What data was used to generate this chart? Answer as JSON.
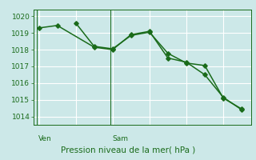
{
  "bg_color": "#cce8e8",
  "grid_color": "#ffffff",
  "line_color": "#1a6b1a",
  "spine_color": "#1a6b1a",
  "ylim": [
    1013.5,
    1020.4
  ],
  "yticks": [
    1014,
    1015,
    1016,
    1017,
    1018,
    1019,
    1020
  ],
  "xlim": [
    -0.3,
    11.5
  ],
  "ven_x": -0.1,
  "sam_x": 3.9,
  "ven_label": "Ven",
  "sam_label": "Sam",
  "xlabel": "Pression niveau de la mer( hPa )",
  "series1_x": [
    0,
    1,
    3,
    4,
    5,
    6,
    7,
    8,
    9,
    10,
    11
  ],
  "series1_y": [
    1019.3,
    1019.45,
    1018.15,
    1018.0,
    1018.9,
    1019.1,
    1017.5,
    1017.25,
    1016.5,
    1015.15,
    1014.4
  ],
  "series2_x": [
    2,
    3,
    4,
    5,
    6,
    7,
    8,
    9,
    10,
    11
  ],
  "series2_y": [
    1019.6,
    1018.2,
    1018.05,
    1018.85,
    1019.05,
    1017.78,
    1017.2,
    1017.05,
    1015.1,
    1014.45
  ],
  "ytick_fontsize": 6.5,
  "xlabel_fontsize": 7.5,
  "daylabel_fontsize": 6.5,
  "marker_size": 2.8,
  "line_width": 1.1
}
